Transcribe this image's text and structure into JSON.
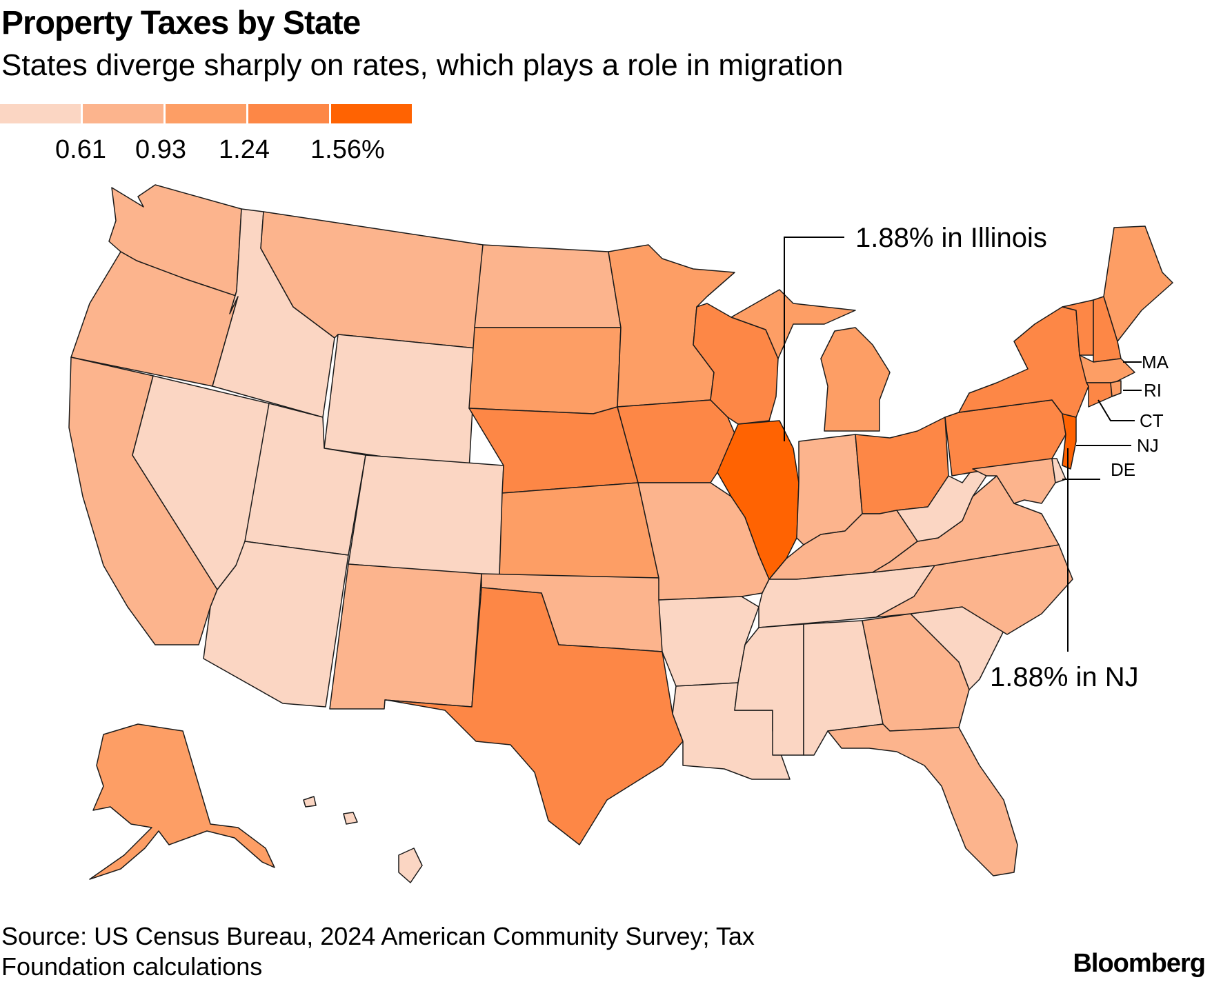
{
  "header": {
    "title": "Property Taxes by State",
    "subtitle": "States diverge sharply on rates, which plays a role in migration"
  },
  "legend": {
    "colors": [
      "#fbd6c3",
      "#fcb48d",
      "#fd9e65",
      "#fd8746",
      "#ff6302"
    ],
    "ticks": [
      "0.61",
      "0.93",
      "1.24",
      "1.56%"
    ]
  },
  "map_data": {
    "type": "choropleth",
    "metric": "Property tax rate",
    "states": {
      "WA": 1,
      "OR": 1,
      "CA": 1,
      "NV": 0,
      "ID": 0,
      "MT": 1,
      "WY": 0,
      "UT": 0,
      "CO": 0,
      "AZ": 0,
      "NM": 1,
      "ND": 1,
      "SD": 2,
      "NE": 3,
      "KS": 2,
      "OK": 1,
      "TX": 3,
      "MN": 2,
      "IA": 3,
      "MO": 1,
      "AR": 0,
      "LA": 0,
      "WI": 3,
      "IL": 4,
      "MI": 2,
      "IN": 1,
      "OH": 3,
      "KY": 1,
      "TN": 0,
      "MS": 0,
      "AL": 0,
      "GA": 1,
      "FL": 1,
      "SC": 0,
      "NC": 1,
      "VA": 1,
      "WV": 0,
      "PA": 3,
      "NY": 3,
      "VT": 3,
      "NH": 3,
      "ME": 2,
      "MA": 2,
      "RI": 2,
      "CT": 3,
      "NJ": 4,
      "DE": 0,
      "MD": 1,
      "AK": 2,
      "HI": 0
    }
  },
  "annotations": {
    "illinois": "1.88% in Illinois",
    "nj": "1.88% in NJ",
    "small_states": [
      "MA",
      "RI",
      "CT",
      "NJ",
      "DE"
    ]
  },
  "footer": {
    "source": "Source: US Census Bureau, 2024 American Community Survey; Tax Foundation calculations",
    "logo": "Bloomberg"
  }
}
